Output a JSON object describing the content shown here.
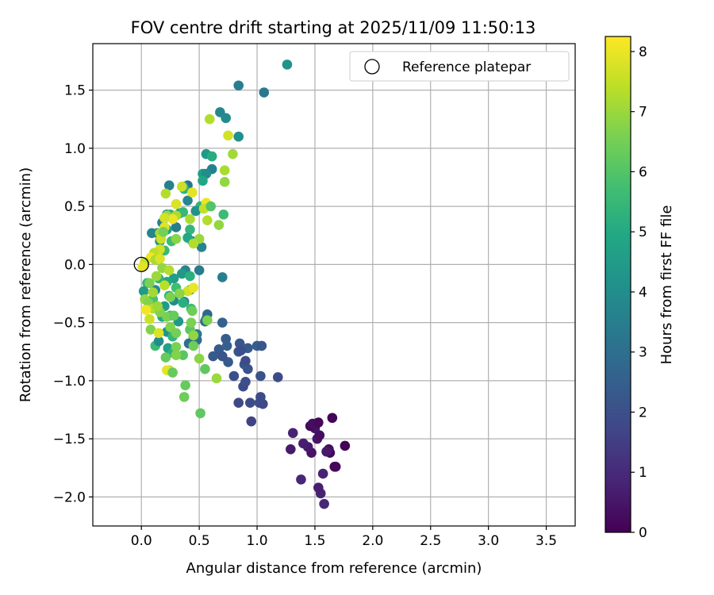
{
  "chart_data": {
    "type": "scatter",
    "title": "FOV centre drift starting at 2025/11/09 11:50:13",
    "xlabel": "Angular distance from reference (arcmin)",
    "ylabel": "Rotation from reference (arcmin)",
    "xlim": [
      -0.42,
      3.75
    ],
    "ylim": [
      -2.25,
      1.9
    ],
    "xticks": [
      "0.0",
      "0.5",
      "1.0",
      "1.5",
      "2.0",
      "2.5",
      "3.0",
      "3.5"
    ],
    "xtick_values": [
      0,
      0.5,
      1.0,
      1.5,
      2.0,
      2.5,
      3.0,
      3.5
    ],
    "yticks": [
      "−2.0",
      "−1.5",
      "−1.0",
      "−0.5",
      "0.0",
      "0.5",
      "1.0",
      "1.5"
    ],
    "ytick_values": [
      -2.0,
      -1.5,
      -1.0,
      -0.5,
      0.0,
      0.5,
      1.0,
      1.5
    ],
    "grid": true,
    "legend": {
      "position": "top-right",
      "entries": [
        "Reference platepar"
      ]
    },
    "reference_point": {
      "x": 0.0,
      "y": 0.0,
      "label": "Reference platepar"
    },
    "colorbar": {
      "label": "Hours from first FF file",
      "min": 0,
      "max": 8.25,
      "ticks": [
        "0",
        "1",
        "2",
        "3",
        "4",
        "5",
        "6",
        "7",
        "8"
      ],
      "tick_values": [
        0,
        1,
        2,
        3,
        4,
        5,
        6,
        7,
        8
      ],
      "colormap": "viridis"
    },
    "points": [
      [
        1.58,
        -2.06,
        0.9
      ],
      [
        1.55,
        -1.97,
        0.8
      ],
      [
        1.53,
        -1.92,
        0.7
      ],
      [
        1.57,
        -1.8,
        0.8
      ],
      [
        1.38,
        -1.85,
        0.9
      ],
      [
        1.67,
        -1.74,
        0.1
      ],
      [
        1.68,
        -1.74,
        0.2
      ],
      [
        1.63,
        -1.62,
        0.1
      ],
      [
        1.62,
        -1.59,
        0.3
      ],
      [
        1.76,
        -1.56,
        0.05
      ],
      [
        1.47,
        -1.62,
        0.4
      ],
      [
        1.44,
        -1.57,
        0.6
      ],
      [
        1.4,
        -1.54,
        0.7
      ],
      [
        1.29,
        -1.59,
        0.6
      ],
      [
        1.31,
        -1.45,
        0.8
      ],
      [
        1.52,
        -1.5,
        0.5
      ],
      [
        1.54,
        -1.47,
        0.3
      ],
      [
        1.5,
        -1.41,
        0.4
      ],
      [
        1.46,
        -1.39,
        0.2
      ],
      [
        1.48,
        -1.37,
        0.3
      ],
      [
        1.53,
        -1.36,
        0.2
      ],
      [
        1.65,
        -1.32,
        0.1
      ],
      [
        1.6,
        -1.61,
        0.6
      ],
      [
        0.95,
        -1.35,
        1.6
      ],
      [
        0.84,
        -1.19,
        1.8
      ],
      [
        0.94,
        -1.19,
        1.9
      ],
      [
        1.02,
        -1.19,
        2.0
      ],
      [
        1.05,
        -1.2,
        1.8
      ],
      [
        0.88,
        -1.05,
        1.9
      ],
      [
        0.9,
        -1.01,
        2.0
      ],
      [
        1.03,
        -1.14,
        1.9
      ],
      [
        1.18,
        -0.97,
        1.9
      ],
      [
        0.8,
        -0.96,
        2.0
      ],
      [
        0.92,
        -0.9,
        2.1
      ],
      [
        0.89,
        -0.86,
        2.2
      ],
      [
        0.84,
        -0.75,
        2.2
      ],
      [
        0.87,
        -0.73,
        2.0
      ],
      [
        0.92,
        -0.72,
        2.3
      ],
      [
        1.0,
        -0.7,
        2.4
      ],
      [
        1.04,
        -0.7,
        2.2
      ],
      [
        0.75,
        -0.84,
        2.3
      ],
      [
        0.73,
        -0.64,
        2.4
      ],
      [
        0.67,
        -0.73,
        2.3
      ],
      [
        0.7,
        -0.79,
        2.1
      ],
      [
        0.74,
        -0.7,
        2.5
      ],
      [
        0.62,
        -0.79,
        2.3
      ],
      [
        0.85,
        -0.68,
        2.2
      ],
      [
        0.86,
        -0.74,
        2.0
      ],
      [
        1.03,
        -0.96,
        2.1
      ],
      [
        0.9,
        -0.83,
        1.9
      ],
      [
        0.41,
        -0.68,
        3.0
      ],
      [
        0.45,
        -0.62,
        3.2
      ],
      [
        0.48,
        -0.65,
        2.9
      ],
      [
        0.55,
        -0.49,
        3.1
      ],
      [
        0.56,
        -0.47,
        2.8
      ],
      [
        0.57,
        -0.43,
        2.7
      ],
      [
        0.7,
        -0.5,
        2.6
      ],
      [
        0.48,
        -0.6,
        3.3
      ],
      [
        0.84,
        1.54,
        3.5
      ],
      [
        1.06,
        1.48,
        3.3
      ],
      [
        0.68,
        1.31,
        3.8
      ],
      [
        0.73,
        1.26,
        3.9
      ],
      [
        0.84,
        1.1,
        4.1
      ],
      [
        0.56,
        0.95,
        4.4
      ],
      [
        0.61,
        0.93,
        5.1
      ],
      [
        0.61,
        0.82,
        3.6
      ],
      [
        0.53,
        0.78,
        4.6
      ],
      [
        0.56,
        0.78,
        4.0
      ],
      [
        0.4,
        0.68,
        3.2
      ],
      [
        0.24,
        0.68,
        3.6
      ],
      [
        0.36,
        0.67,
        5.0
      ],
      [
        0.37,
        0.65,
        5.3
      ],
      [
        0.53,
        0.72,
        4.9
      ],
      [
        0.4,
        0.55,
        3.8
      ],
      [
        0.51,
        0.5,
        5.3
      ],
      [
        0.55,
        0.5,
        4.5
      ],
      [
        0.47,
        0.46,
        4.2
      ],
      [
        0.33,
        0.44,
        4.7
      ],
      [
        0.22,
        0.43,
        3.9
      ],
      [
        0.25,
        0.43,
        5.2
      ],
      [
        0.36,
        0.45,
        5.5
      ],
      [
        0.3,
        0.32,
        3.4
      ],
      [
        0.18,
        0.36,
        3.5
      ],
      [
        0.22,
        0.3,
        4.8
      ],
      [
        0.14,
        0.27,
        3.0
      ],
      [
        0.09,
        0.27,
        3.7
      ],
      [
        0.42,
        0.3,
        5.4
      ],
      [
        0.44,
        0.2,
        4.2
      ],
      [
        0.52,
        0.15,
        3.7
      ],
      [
        0.4,
        0.23,
        4.9
      ],
      [
        0.26,
        0.2,
        5.6
      ],
      [
        0.16,
        0.2,
        4.3
      ],
      [
        0.2,
        0.12,
        5.5
      ],
      [
        1.26,
        1.72,
        4.2
      ],
      [
        0.71,
        0.43,
        5.6
      ],
      [
        0.7,
        -0.11,
        3.5
      ],
      [
        0.5,
        -0.05,
        3.4
      ],
      [
        0.38,
        -0.05,
        3.8
      ],
      [
        0.35,
        -0.08,
        4.4
      ],
      [
        0.42,
        -0.1,
        5.2
      ],
      [
        0.28,
        -0.12,
        4.6
      ],
      [
        0.22,
        -0.15,
        4.9
      ],
      [
        0.15,
        -0.12,
        5.3
      ],
      [
        0.05,
        -0.16,
        5.4
      ],
      [
        0.02,
        -0.23,
        4.5
      ],
      [
        0.12,
        -0.22,
        3.9
      ],
      [
        0.06,
        -0.32,
        4.1
      ],
      [
        0.15,
        -0.38,
        4.8
      ],
      [
        0.37,
        -0.32,
        3.7
      ],
      [
        0.28,
        -0.31,
        4.0
      ],
      [
        0.24,
        -0.27,
        5.1
      ],
      [
        0.2,
        -0.36,
        4.5
      ],
      [
        0.3,
        -0.2,
        5.7
      ],
      [
        0.42,
        -0.22,
        4.9
      ],
      [
        0.1,
        -0.3,
        5.8
      ],
      [
        0.25,
        -0.44,
        5.5
      ],
      [
        0.22,
        -0.58,
        4.2
      ],
      [
        0.18,
        -0.45,
        5.0
      ],
      [
        0.27,
        -0.62,
        5.4
      ],
      [
        0.32,
        -0.49,
        4.4
      ],
      [
        0.36,
        -0.33,
        5.2
      ],
      [
        0.43,
        -0.38,
        5.6
      ],
      [
        0.12,
        -0.7,
        5.6
      ],
      [
        0.23,
        -0.72,
        4.7
      ],
      [
        0.27,
        -0.76,
        5.3
      ],
      [
        0.15,
        -0.66,
        4.0
      ],
      [
        0.59,
        1.25,
        7.3
      ],
      [
        0.75,
        1.11,
        7.7
      ],
      [
        0.79,
        0.95,
        7.1
      ],
      [
        0.72,
        0.81,
        7.2
      ],
      [
        0.72,
        0.71,
        6.9
      ],
      [
        0.44,
        0.62,
        7.9
      ],
      [
        0.35,
        0.67,
        7.6
      ],
      [
        0.21,
        0.61,
        7.3
      ],
      [
        0.3,
        0.52,
        7.8
      ],
      [
        0.56,
        0.53,
        8.0
      ],
      [
        0.54,
        0.48,
        7.5
      ],
      [
        0.22,
        0.42,
        7.0
      ],
      [
        0.3,
        0.42,
        7.2
      ],
      [
        0.27,
        0.39,
        8.0
      ],
      [
        0.2,
        0.4,
        7.7
      ],
      [
        0.57,
        0.38,
        7.3
      ],
      [
        0.67,
        0.34,
        6.9
      ],
      [
        0.42,
        0.39,
        7.2
      ],
      [
        0.16,
        0.27,
        7.1
      ],
      [
        0.17,
        0.22,
        7.6
      ],
      [
        0.2,
        0.32,
        7.9
      ],
      [
        0.5,
        0.22,
        7.0
      ],
      [
        0.45,
        0.18,
        7.3
      ],
      [
        0.3,
        0.22,
        6.8
      ],
      [
        0.16,
        0.13,
        7.7
      ],
      [
        0.11,
        0.1,
        7.4
      ],
      [
        0.08,
        0.06,
        8.1
      ],
      [
        0.12,
        0.04,
        7.2
      ],
      [
        0.16,
        0.05,
        7.8
      ],
      [
        0.03,
        0.02,
        7.5
      ],
      [
        0.01,
        -0.02,
        7.9
      ],
      [
        0.18,
        -0.03,
        6.9
      ],
      [
        0.24,
        -0.05,
        7.3
      ],
      [
        0.13,
        -0.1,
        7.0
      ],
      [
        0.07,
        -0.16,
        6.6
      ],
      [
        0.2,
        -0.18,
        7.4
      ],
      [
        0.1,
        -0.24,
        7.1
      ],
      [
        0.4,
        -0.23,
        7.7
      ],
      [
        0.45,
        -0.2,
        8.0
      ],
      [
        0.25,
        -0.28,
        6.6
      ],
      [
        0.33,
        -0.25,
        6.8
      ],
      [
        0.03,
        -0.3,
        6.9
      ],
      [
        0.06,
        -0.33,
        6.7
      ],
      [
        0.1,
        -0.38,
        7.3
      ],
      [
        0.04,
        -0.39,
        8.1
      ],
      [
        0.16,
        -0.41,
        6.7
      ],
      [
        0.07,
        -0.47,
        7.6
      ],
      [
        0.14,
        -0.36,
        7.0
      ],
      [
        0.22,
        -0.45,
        6.6
      ],
      [
        0.28,
        -0.44,
        6.3
      ],
      [
        0.08,
        -0.56,
        6.7
      ],
      [
        0.15,
        -0.59,
        7.8
      ],
      [
        0.25,
        -0.54,
        6.7
      ],
      [
        0.3,
        -0.59,
        6.5
      ],
      [
        0.42,
        -0.56,
        6.1
      ],
      [
        0.43,
        -0.5,
        6.6
      ],
      [
        0.45,
        -0.61,
        6.9
      ],
      [
        0.45,
        -0.7,
        6.4
      ],
      [
        0.5,
        -0.81,
        6.8
      ],
      [
        0.36,
        -0.78,
        6.1
      ],
      [
        0.21,
        -0.8,
        6.3
      ],
      [
        0.3,
        -0.78,
        6.7
      ],
      [
        0.3,
        -0.71,
        6.6
      ],
      [
        0.44,
        -0.4,
        6.4
      ],
      [
        0.55,
        -0.9,
        6.2
      ],
      [
        0.24,
        -0.91,
        7.3
      ],
      [
        0.22,
        -0.91,
        7.9
      ],
      [
        0.27,
        -0.93,
        6.3
      ],
      [
        0.38,
        -1.04,
        6.3
      ],
      [
        0.65,
        -0.98,
        7.0
      ],
      [
        0.37,
        -1.14,
        6.4
      ],
      [
        0.51,
        -1.28,
        6.2
      ],
      [
        0.57,
        -0.48,
        6.6
      ],
      [
        0.6,
        0.5,
        6.0
      ],
      [
        0.19,
        0.28,
        6.5
      ]
    ]
  }
}
